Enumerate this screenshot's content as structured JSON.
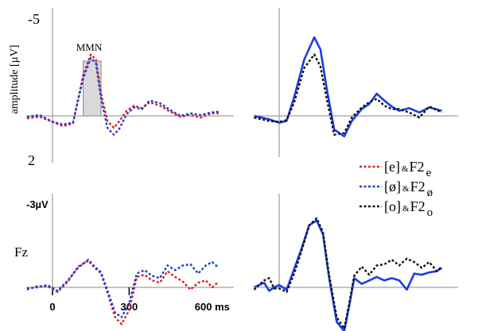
{
  "chart_data": [
    {
      "id": "top-left",
      "type": "line",
      "ylabel": "amplitude [µV]",
      "y_top_label": "-5",
      "y_bottom_label": "2",
      "ylim": [
        -5,
        2
      ],
      "y_inverted": true,
      "x_range_ms": [
        -100,
        650
      ],
      "shaded_window_ms": [
        120,
        190
      ],
      "annotation": "MMN",
      "series": [
        {
          "color": "#e02020",
          "dash": "dotted",
          "x": [
            -100,
            -50,
            0,
            40,
            80,
            120,
            150,
            170,
            190,
            215,
            240,
            260,
            290,
            320,
            350,
            380,
            420,
            460,
            500,
            540,
            580,
            620,
            650
          ],
          "y": [
            0.15,
            0.05,
            0.35,
            0.6,
            0.45,
            -2.4,
            -3.6,
            -3.3,
            -1.3,
            0.3,
            0.7,
            0.35,
            -0.3,
            -0.6,
            -0.45,
            -0.8,
            -0.6,
            -0.25,
            0.05,
            -0.05,
            0.1,
            -0.15,
            -0.15
          ]
        },
        {
          "color": "#1a3ee0",
          "dash": "dotted",
          "x": [
            -100,
            -50,
            0,
            40,
            80,
            120,
            150,
            170,
            190,
            215,
            240,
            260,
            290,
            320,
            350,
            380,
            420,
            460,
            500,
            540,
            580,
            620,
            650
          ],
          "y": [
            0.05,
            -0.05,
            0.35,
            0.5,
            0.4,
            -2.2,
            -3.4,
            -3.1,
            -1.0,
            0.7,
            1.1,
            0.8,
            -0.1,
            -0.5,
            -0.4,
            -0.9,
            -0.75,
            -0.35,
            0.0,
            -0.15,
            -0.05,
            -0.2,
            -0.25
          ]
        }
      ]
    },
    {
      "id": "top-right",
      "type": "line",
      "ylim": [
        -5,
        2
      ],
      "y_inverted": true,
      "x_range_ms": [
        -100,
        650
      ],
      "series": [
        {
          "color": "#1a3ee0",
          "dash": "solid",
          "x": [
            -100,
            -40,
            0,
            30,
            60,
            100,
            140,
            165,
            190,
            220,
            260,
            290,
            330,
            360,
            390,
            420,
            450,
            480,
            520,
            560,
            600,
            650
          ],
          "y": [
            0.0,
            0.2,
            0.4,
            0.3,
            -1.1,
            -3.3,
            -4.6,
            -3.9,
            -1.6,
            0.8,
            1.2,
            0.3,
            -0.4,
            -0.7,
            -1.3,
            -0.9,
            -0.55,
            -0.3,
            -0.45,
            -0.2,
            -0.5,
            -0.3
          ]
        },
        {
          "color": "#111111",
          "dash": "dotted",
          "x": [
            -100,
            -40,
            0,
            30,
            60,
            100,
            140,
            165,
            190,
            220,
            260,
            290,
            330,
            360,
            390,
            420,
            450,
            480,
            520,
            560,
            600,
            650
          ],
          "y": [
            0.1,
            0.3,
            0.35,
            0.25,
            -0.8,
            -2.8,
            -3.6,
            -2.9,
            -1.0,
            1.1,
            1.0,
            0.1,
            -0.5,
            -0.8,
            -1.0,
            -0.6,
            -0.4,
            -0.4,
            -0.2,
            0.1,
            -0.55,
            -0.2
          ]
        }
      ]
    },
    {
      "id": "bottom-left",
      "type": "line",
      "row_label": "Fz",
      "y_top_label": "-3µV",
      "ylim": [
        -3,
        2
      ],
      "y_inverted": true,
      "x_range_ms": [
        -100,
        650
      ],
      "x_ticks": [
        0,
        300
      ],
      "x_tick_labels": [
        "0",
        "300",
        "600 ms"
      ],
      "x_tick_label_values": [
        0,
        300,
        600
      ],
      "series": [
        {
          "color": "#e02020",
          "dash": "dotted",
          "x": [
            -100,
            -60,
            -20,
            20,
            60,
            100,
            140,
            165,
            190,
            220,
            245,
            270,
            300,
            330,
            360,
            390,
            420,
            450,
            480,
            510,
            540,
            570,
            600,
            625,
            650
          ],
          "y": [
            0.1,
            -0.05,
            -0.05,
            0.2,
            -0.25,
            -0.9,
            -1.15,
            -0.85,
            -0.6,
            0.4,
            1.3,
            1.6,
            1.0,
            -0.45,
            -0.55,
            -0.3,
            -0.2,
            -0.7,
            -0.45,
            -0.25,
            0.1,
            -0.2,
            -0.3,
            0.0,
            -0.25
          ]
        },
        {
          "color": "#1a3ee0",
          "dash": "dotted",
          "x": [
            -100,
            -60,
            -20,
            20,
            60,
            100,
            140,
            165,
            190,
            220,
            245,
            270,
            300,
            330,
            360,
            390,
            420,
            450,
            480,
            510,
            540,
            570,
            600,
            625,
            650
          ],
          "y": [
            0.05,
            0.0,
            -0.1,
            0.15,
            -0.3,
            -0.85,
            -1.2,
            -0.9,
            -0.65,
            0.3,
            1.1,
            1.3,
            0.7,
            -0.6,
            -0.75,
            -0.5,
            -0.4,
            -0.95,
            -0.75,
            -0.95,
            -1.0,
            -0.6,
            -0.95,
            -1.1,
            -0.85
          ]
        }
      ]
    },
    {
      "id": "bottom-right",
      "type": "line",
      "ylim": [
        -3,
        2
      ],
      "y_inverted": true,
      "x_range_ms": [
        -100,
        650
      ],
      "series": [
        {
          "color": "#1a3ee0",
          "dash": "solid",
          "x": [
            -100,
            -60,
            -40,
            -20,
            0,
            30,
            60,
            90,
            120,
            150,
            175,
            200,
            230,
            260,
            280,
            300,
            330,
            360,
            390,
            420,
            450,
            480,
            510,
            540,
            570,
            600,
            630,
            650
          ],
          "y": [
            0.0,
            -0.2,
            0.15,
            0.0,
            -0.1,
            0.1,
            -0.8,
            -1.7,
            -2.7,
            -2.9,
            -2.3,
            -0.4,
            1.5,
            1.9,
            0.8,
            -0.4,
            -0.15,
            -0.3,
            -0.45,
            -0.3,
            -0.4,
            -0.3,
            0.1,
            -0.6,
            -0.55,
            -0.65,
            -0.7,
            -0.85
          ]
        },
        {
          "color": "#111111",
          "dash": "dotted",
          "x": [
            -100,
            -60,
            -40,
            -20,
            0,
            30,
            60,
            90,
            120,
            150,
            175,
            200,
            230,
            260,
            280,
            300,
            330,
            360,
            390,
            420,
            450,
            480,
            510,
            540,
            570,
            600,
            630,
            650
          ],
          "y": [
            0.1,
            -0.3,
            -0.4,
            0.05,
            0.05,
            0.2,
            -0.6,
            -1.6,
            -2.7,
            -3.0,
            -2.4,
            -0.5,
            1.3,
            1.8,
            0.7,
            -0.5,
            -0.9,
            -0.55,
            -0.95,
            -1.0,
            -1.2,
            -0.95,
            -1.25,
            -1.1,
            -0.85,
            -1.1,
            -0.7,
            -0.9
          ]
        }
      ]
    }
  ],
  "legend": [
    {
      "color": "#e02020",
      "dash": "dotted",
      "vowel": "[e]",
      "amp": "&",
      "formant": "F2",
      "sub": "e"
    },
    {
      "color": "#1a3ee0",
      "dash": "dotted",
      "vowel": "[ø]",
      "amp": "&",
      "formant": "F2",
      "sub": "ø"
    },
    {
      "color": "#111111",
      "dash": "dotted",
      "vowel": "[o]",
      "amp": "&",
      "formant": "F2",
      "sub": "o"
    }
  ]
}
